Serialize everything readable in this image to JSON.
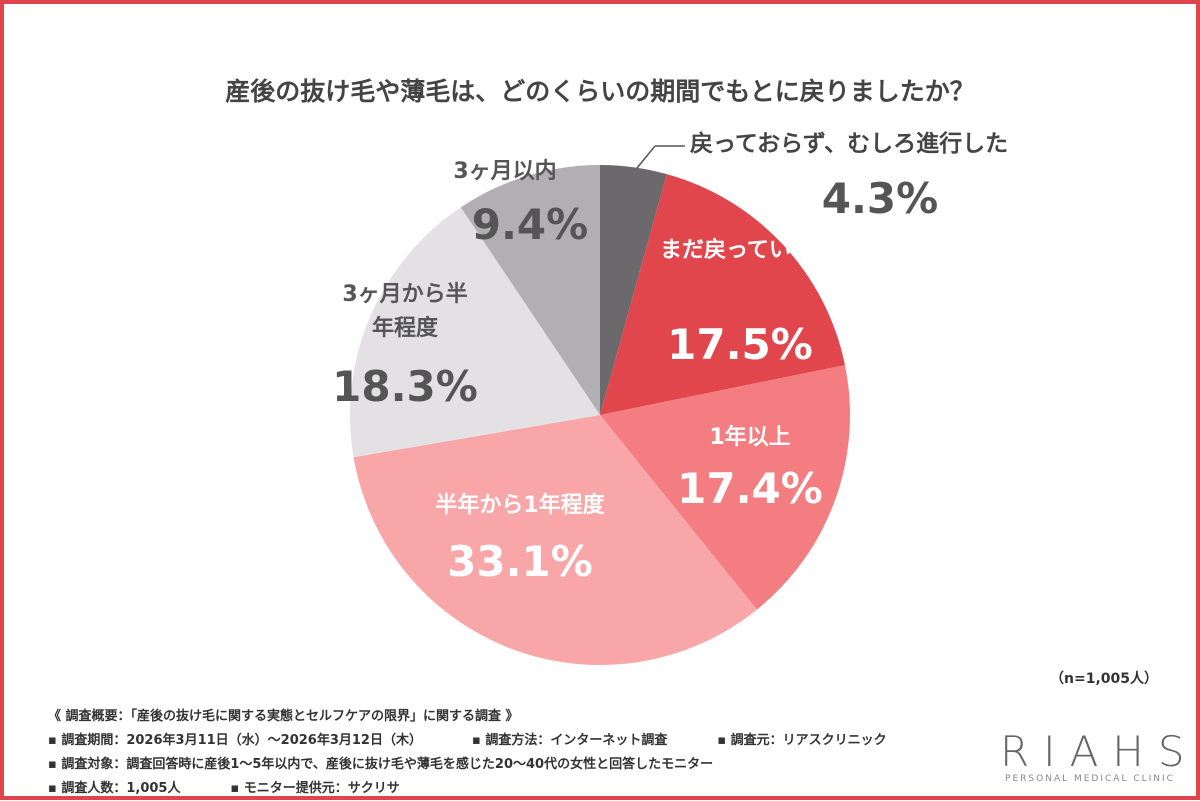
{
  "title": "産後の抜け毛や薄毛は、どのくらいの期間でもとに戻りましたか？",
  "chart_data": {
    "type": "pie",
    "start": "top",
    "direction": "clockwise",
    "slices": [
      {
        "label": "戻っておらず、むしろ進行した",
        "value": 4.3,
        "display": "4.3%",
        "color": "#6b696b"
      },
      {
        "label": "まだ戻っていない",
        "value": 17.5,
        "display": "17.5%",
        "color": "#e0464c"
      },
      {
        "label": "1年以上",
        "value": 17.4,
        "display": "17.4%",
        "color": "#f47d81"
      },
      {
        "label": "半年から1年程度",
        "value": 33.1,
        "display": "33.1%",
        "color": "#f9a6a9"
      },
      {
        "label": "3ヶ月から半年程度",
        "value": 18.3,
        "display": "18.3%",
        "color": "#e3e1e4"
      },
      {
        "label": "3ヶ月以内",
        "value": 9.4,
        "display": "9.4%",
        "color": "#b1afb2"
      }
    ]
  },
  "sample": "（n=1,005人）",
  "notes": {
    "heading": "《 調査概要：「産後の抜け毛に関する実態とセルフケアの限界」に関する調査 》",
    "period": "▪ 調査期間：2026年3月11日（水）～2026年3月12日（木）",
    "method": "▪ 調査方法：インターネット調査",
    "source": "▪ 調査元：リアスクリニック",
    "target": "▪ 調査対象：調査回答時に産後1～5年以内で、産後に抜け毛や薄毛を感じた20～40代の女性と回答したモニター",
    "count": "▪ 調査人数：1,005人",
    "provider": "▪ モニター提供元：サクリサ"
  },
  "logo": {
    "name": "RIAHS",
    "tagline": "PERSONAL MEDICAL CLINIC"
  }
}
